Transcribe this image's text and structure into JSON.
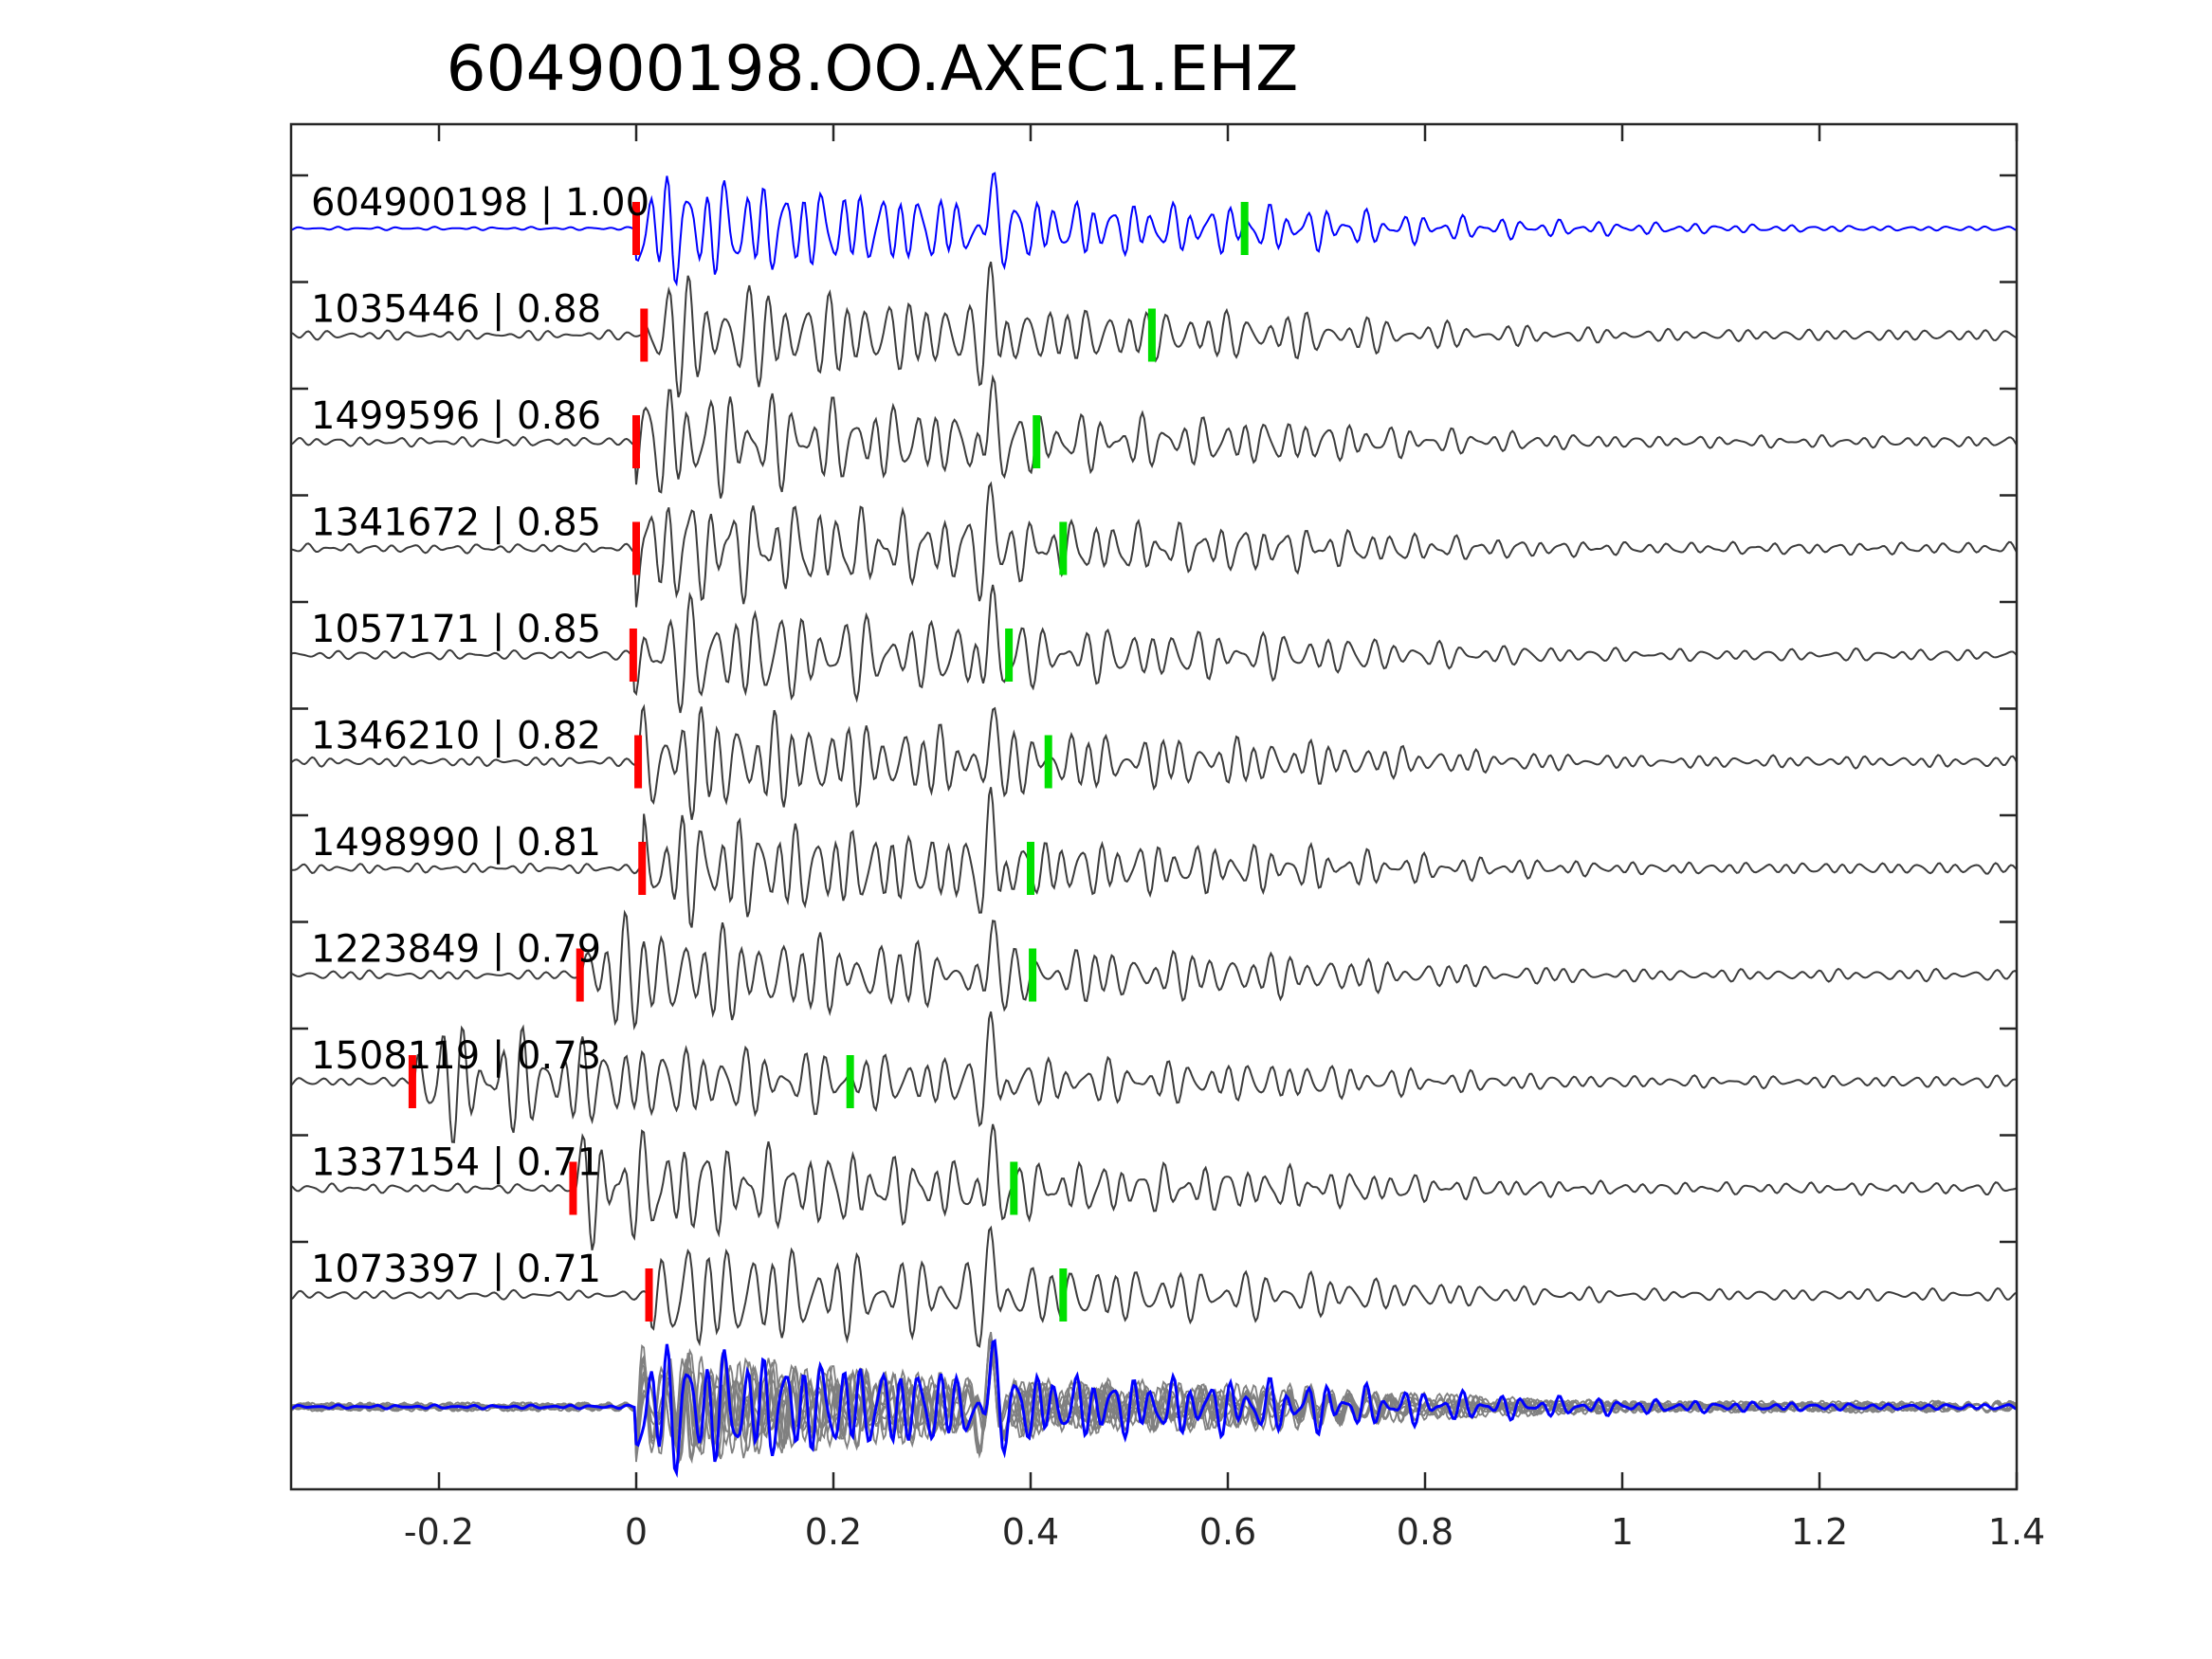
{
  "chart_data": {
    "type": "line",
    "title": "604900198.OO.AXEC1.EHZ",
    "xlabel": "",
    "ylabel": "",
    "xlim": [
      -0.35,
      1.4
    ],
    "xticks": [
      -0.2,
      0,
      0.2,
      0.4,
      0.6,
      0.8,
      1,
      1.2,
      1.4
    ],
    "xtick_labels": [
      "-0.2",
      "0",
      "0.2",
      "0.4",
      "0.6",
      "0.8",
      "1",
      "1.2",
      "1.4"
    ],
    "grid": false,
    "colors": {
      "master": "#0000ff",
      "trace": "#3c3c3c",
      "stack_trace": "#808080",
      "p_pick": "#ff0000",
      "s_pick": "#00e000"
    },
    "traces": [
      {
        "label": "604900198 | 1.00",
        "p_pick": 0.0,
        "s_pick": 0.617,
        "master": true
      },
      {
        "label": "1035446 | 0.88",
        "p_pick": 0.008,
        "s_pick": 0.523
      },
      {
        "label": "1499596 | 0.86",
        "p_pick": 0.0,
        "s_pick": 0.406
      },
      {
        "label": "1341672 | 0.85",
        "p_pick": 0.0,
        "s_pick": 0.433
      },
      {
        "label": "1057171 | 0.85",
        "p_pick": -0.003,
        "s_pick": 0.378
      },
      {
        "label": "1346210 | 0.82",
        "p_pick": 0.002,
        "s_pick": 0.418
      },
      {
        "label": "1498990 | 0.81",
        "p_pick": 0.006,
        "s_pick": 0.4
      },
      {
        "label": "1223849 | 0.79",
        "p_pick": -0.057,
        "s_pick": 0.402
      },
      {
        "label": "1508119 | 0.73",
        "p_pick": -0.227,
        "s_pick": 0.217
      },
      {
        "label": "1337154 | 0.71",
        "p_pick": -0.064,
        "s_pick": 0.383
      },
      {
        "label": "1073397 | 0.71",
        "p_pick": 0.013,
        "s_pick": 0.433
      }
    ],
    "stack": {
      "label": ""
    }
  }
}
